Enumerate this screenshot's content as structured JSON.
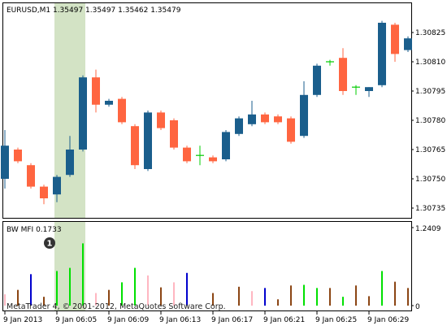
{
  "main_pane": {
    "header": "EURUSD,M1  1.35497 1.35497 1.35462 1.35479",
    "y_ticks": [
      {
        "price": 1.30825,
        "label": "1.30825"
      },
      {
        "price": 1.3081,
        "label": "1.30810"
      },
      {
        "price": 1.30795,
        "label": "1.30795"
      },
      {
        "price": 1.3078,
        "label": "1.30780"
      },
      {
        "price": 1.30765,
        "label": "1.30765"
      },
      {
        "price": 1.3075,
        "label": "1.30750"
      },
      {
        "price": 1.30735,
        "label": "1.30735"
      }
    ],
    "price_range": [
      1.3073,
      1.3084
    ],
    "highlight_bars": [
      4,
      6
    ],
    "colors": {
      "bull": "#1a5e8c",
      "bear": "#ff6540",
      "doji": "#00cc00",
      "highlight": "#d3e3c5"
    }
  },
  "chart_data": [
    {
      "type": "candlestick",
      "title": "EURUSD,M1",
      "quote": {
        "open": 1.35497,
        "high": 1.35497,
        "low": 1.35462,
        "close": 1.35479
      },
      "ohlc": [
        {
          "o": 1.3075,
          "h": 1.30775,
          "l": 1.30745,
          "c": 1.30767
        },
        {
          "o": 1.30765,
          "h": 1.30766,
          "l": 1.30758,
          "c": 1.30759
        },
        {
          "o": 1.30757,
          "h": 1.30758,
          "l": 1.30745,
          "c": 1.30746
        },
        {
          "o": 1.30746,
          "h": 1.30747,
          "l": 1.30737,
          "c": 1.3074
        },
        {
          "o": 1.30742,
          "h": 1.30752,
          "l": 1.30738,
          "c": 1.30751
        },
        {
          "o": 1.30752,
          "h": 1.30772,
          "l": 1.30751,
          "c": 1.30765
        },
        {
          "o": 1.30765,
          "h": 1.30803,
          "l": 1.30764,
          "c": 1.30802
        },
        {
          "o": 1.30802,
          "h": 1.30806,
          "l": 1.30784,
          "c": 1.30788
        },
        {
          "o": 1.30788,
          "h": 1.30791,
          "l": 1.30787,
          "c": 1.3079
        },
        {
          "o": 1.30791,
          "h": 1.30792,
          "l": 1.30778,
          "c": 1.30779
        },
        {
          "o": 1.30777,
          "h": 1.30778,
          "l": 1.30755,
          "c": 1.30757
        },
        {
          "o": 1.30755,
          "h": 1.30785,
          "l": 1.30754,
          "c": 1.30784
        },
        {
          "o": 1.30784,
          "h": 1.30785,
          "l": 1.30775,
          "c": 1.30776
        },
        {
          "o": 1.3078,
          "h": 1.30781,
          "l": 1.30765,
          "c": 1.30766
        },
        {
          "o": 1.30766,
          "h": 1.30767,
          "l": 1.30758,
          "c": 1.30759
        },
        {
          "o": 1.30762,
          "h": 1.30767,
          "l": 1.30757,
          "c": 1.30762
        },
        {
          "o": 1.30761,
          "h": 1.30762,
          "l": 1.30758,
          "c": 1.30759
        },
        {
          "o": 1.3076,
          "h": 1.30775,
          "l": 1.30759,
          "c": 1.30774
        },
        {
          "o": 1.30773,
          "h": 1.30782,
          "l": 1.30772,
          "c": 1.30781
        },
        {
          "o": 1.30778,
          "h": 1.3079,
          "l": 1.30777,
          "c": 1.30783
        },
        {
          "o": 1.30783,
          "h": 1.30784,
          "l": 1.30778,
          "c": 1.30779
        },
        {
          "o": 1.30782,
          "h": 1.30783,
          "l": 1.30778,
          "c": 1.30779
        },
        {
          "o": 1.30781,
          "h": 1.30782,
          "l": 1.30768,
          "c": 1.30769
        },
        {
          "o": 1.30772,
          "h": 1.308,
          "l": 1.30771,
          "c": 1.30793
        },
        {
          "o": 1.30793,
          "h": 1.30809,
          "l": 1.30792,
          "c": 1.30808
        },
        {
          "o": 1.30809,
          "h": 1.30811,
          "l": 1.30808,
          "c": 1.3081
        },
        {
          "o": 1.30812,
          "h": 1.30817,
          "l": 1.30793,
          "c": 1.30795
        },
        {
          "o": 1.30796,
          "h": 1.30798,
          "l": 1.30793,
          "c": 1.30797
        },
        {
          "o": 1.30795,
          "h": 1.30797,
          "l": 1.30792,
          "c": 1.30797
        },
        {
          "o": 1.30798,
          "h": 1.30831,
          "l": 1.30797,
          "c": 1.3083
        },
        {
          "o": 1.30829,
          "h": 1.3083,
          "l": 1.3081,
          "c": 1.30814
        },
        {
          "o": 1.30816,
          "h": 1.30823,
          "l": 1.30815,
          "c": 1.30822
        }
      ]
    },
    {
      "type": "bar",
      "title": "BW MFI 0.1733",
      "ymax_label": "1.2409",
      "ymin_label": "0",
      "ylim": [
        0,
        1.2409
      ],
      "values": [
        0.18,
        0.25,
        0.5,
        0.14,
        0.55,
        0.6,
        0.99,
        0.2,
        0.25,
        0.37,
        0.6,
        0.48,
        0.29,
        0.37,
        0.52,
        0.0,
        0.2,
        0.0,
        0.3,
        0.23,
        0.28,
        0.1,
        0.32,
        0.33,
        0.28,
        0.28,
        0.14,
        0.32,
        0.15,
        0.55,
        0.38,
        0.28
      ],
      "bar_colors": [
        "#ffb6c1",
        "#8b4513",
        "#0000cd",
        "#8b4513",
        "#00e000",
        "#00e000",
        "#00e000",
        "#ffb6c1",
        "#8b4513",
        "#00e000",
        "#00e000",
        "#ffb6c1",
        "#8b4513",
        "#ffb6c1",
        "#0000cd",
        "#0000cd",
        "#8b4513",
        "#0000cd",
        "#8b4513",
        "#ffb6c1",
        "#0000cd",
        "#8b4513",
        "#8b4513",
        "#00e000",
        "#00e000",
        "#8b4513",
        "#00e000",
        "#8b4513",
        "#8b4513",
        "#00e000",
        "#8b4513",
        "#8b4513"
      ]
    }
  ],
  "sub_pane": {
    "badge": "1",
    "watermark": "MetaTrader 4, © 2001-2012, MetaQuotes Software Corp."
  },
  "time_axis": [
    {
      "bar": 0,
      "label": "9 Jan 2013"
    },
    {
      "bar": 4,
      "label": "9 Jan 06:05"
    },
    {
      "bar": 8,
      "label": "9 Jan 06:09"
    },
    {
      "bar": 12,
      "label": "9 Jan 06:13"
    },
    {
      "bar": 16,
      "label": "9 Jan 06:17"
    },
    {
      "bar": 20,
      "label": "9 Jan 06:21"
    },
    {
      "bar": 24,
      "label": "9 Jan 06:25"
    },
    {
      "bar": 28,
      "label": "9 Jan 06:29"
    }
  ]
}
